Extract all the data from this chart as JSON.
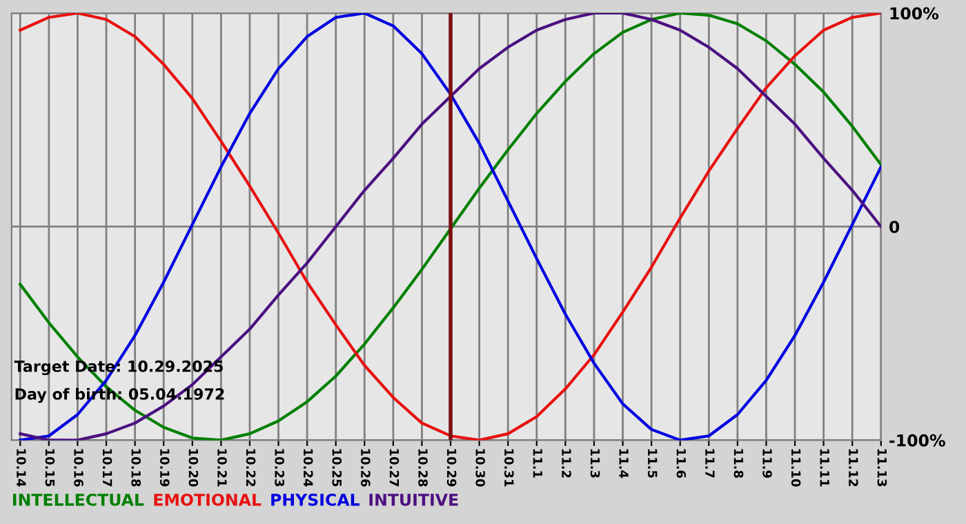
{
  "chart_data": {
    "type": "line",
    "categories": [
      "10.14",
      "10.15",
      "10.16",
      "10.17",
      "10.18",
      "10.19",
      "10.20",
      "10.21",
      "10.22",
      "10.23",
      "10.24",
      "10.25",
      "10.26",
      "10.27",
      "10.28",
      "10.29",
      "10.30",
      "10.31",
      "11.1",
      "11.2",
      "11.3",
      "11.4",
      "11.5",
      "11.6",
      "11.7",
      "11.8",
      "11.9",
      "11.10",
      "11.11",
      "11.12",
      "11.13"
    ],
    "series": [
      {
        "name": "INTELLECTUAL",
        "color": "#008000",
        "values": [
          -27,
          -45,
          -61,
          -75,
          -86,
          -94,
          -99,
          -100,
          -97,
          -91,
          -82,
          -70,
          -55,
          -38,
          -20,
          -1,
          18,
          36,
          53,
          68,
          81,
          91,
          97,
          100,
          99,
          95,
          87,
          76,
          63,
          47,
          29
        ]
      },
      {
        "name": "EMOTIONAL",
        "color": "#e81010",
        "values": [
          92,
          98,
          100,
          97,
          89,
          76,
          60,
          40,
          19,
          -3,
          -26,
          -46,
          -65,
          -80,
          -92,
          -98,
          -100,
          -97,
          -89,
          -76,
          -60,
          -40,
          -19,
          4,
          26,
          46,
          65,
          80,
          92,
          98,
          100
        ]
      },
      {
        "name": "PHYSICAL",
        "color": "#0000e0",
        "values": [
          -100,
          -98,
          -88,
          -72,
          -51,
          -26,
          1,
          28,
          53,
          74,
          89,
          98,
          100,
          94,
          81,
          62,
          39,
          12,
          -15,
          -41,
          -64,
          -83,
          -95,
          -100,
          -98,
          -88,
          -72,
          -51,
          -26,
          1,
          28
        ]
      },
      {
        "name": "INTUITIVE",
        "color": "#4b1080",
        "values": [
          -97,
          -100,
          -100,
          -97,
          -92,
          -84,
          -74,
          -61,
          -48,
          -32,
          -17,
          0,
          17,
          32,
          48,
          61,
          74,
          84,
          92,
          97,
          100,
          100,
          97,
          92,
          84,
          74,
          61,
          48,
          32,
          17,
          0
        ]
      }
    ],
    "ylim": [
      -100,
      100
    ],
    "yticks": [
      {
        "value": 100,
        "label": "100%"
      },
      0,
      {
        "value": -100,
        "label": "-100%"
      }
    ],
    "grid": true,
    "legend": "bottom left",
    "ref_lines": [
      {
        "axis": "x",
        "value": "10.29",
        "color": "#7a1010"
      }
    ],
    "annotations": [
      "Target Date: 10.29.2025",
      "Day of birth: 05.04.1972"
    ]
  }
}
